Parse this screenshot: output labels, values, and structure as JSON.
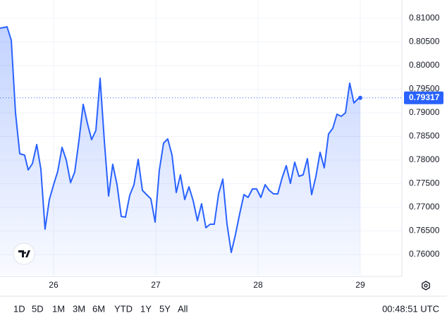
{
  "chart_data": {
    "type": "line",
    "x": [
      25.476,
      25.545,
      25.586,
      25.628,
      25.669,
      25.717,
      25.752,
      25.793,
      25.835,
      25.876,
      25.917,
      25.959,
      26.0,
      26.041,
      26.083,
      26.124,
      26.166,
      26.207,
      26.248,
      26.29,
      26.331,
      26.372,
      26.414,
      26.455,
      26.497,
      26.538,
      26.579,
      26.621,
      26.662,
      26.703,
      26.745,
      26.786,
      26.828,
      26.869,
      26.91,
      26.952,
      26.993,
      27.034,
      27.076,
      27.117,
      27.159,
      27.2,
      27.241,
      27.283,
      27.324,
      27.366,
      27.407,
      27.448,
      27.49,
      27.531,
      27.572,
      27.614,
      27.655,
      27.697,
      27.738,
      27.779,
      27.821,
      27.862,
      27.903,
      27.945,
      27.986,
      28.028,
      28.069,
      28.11,
      28.152,
      28.193,
      28.234,
      28.276,
      28.317,
      28.359,
      28.4,
      28.441,
      28.483,
      28.524,
      28.566,
      28.607,
      28.648,
      28.69,
      28.731,
      28.772,
      28.814,
      28.855,
      28.897,
      28.938,
      28.979,
      29.0
    ],
    "series": [
      {
        "color": "#2962ff",
        "values": [
          0.80791,
          0.80821,
          0.80537,
          0.79,
          0.78134,
          0.78104,
          0.77791,
          0.77925,
          0.78328,
          0.77806,
          0.76537,
          0.77164,
          0.77478,
          0.77761,
          0.78269,
          0.78,
          0.77522,
          0.77746,
          0.78403,
          0.79179,
          0.78776,
          0.78433,
          0.78627,
          0.79731,
          0.78403,
          0.77239,
          0.7791,
          0.77478,
          0.76806,
          0.76791,
          0.77254,
          0.77478,
          0.78015,
          0.77358,
          0.77269,
          0.77179,
          0.76687,
          0.77776,
          0.78358,
          0.78448,
          0.78104,
          0.77313,
          0.77687,
          0.77164,
          0.77433,
          0.77134,
          0.76716,
          0.77075,
          0.76567,
          0.76642,
          0.76642,
          0.77284,
          0.77597,
          0.76642,
          0.76045,
          0.76418,
          0.76866,
          0.77269,
          0.77209,
          0.77388,
          0.77388,
          0.77209,
          0.77478,
          0.77358,
          0.77284,
          0.77284,
          0.77612,
          0.77881,
          0.77507,
          0.77955,
          0.77657,
          0.77687,
          0.7803,
          0.77269,
          0.77657,
          0.78164,
          0.77836,
          0.78552,
          0.78672,
          0.7897,
          0.78925,
          0.79,
          0.79627,
          0.79209,
          0.79299,
          0.79317
        ]
      }
    ],
    "xlim": [
      25.476,
      29.407
    ],
    "xticks": [
      26,
      27,
      28,
      29
    ],
    "ylim": [
      0.75567,
      0.81388
    ],
    "yticks": [
      {
        "value": 0.76,
        "label": "0.76000"
      },
      {
        "value": 0.765,
        "label": "0.76500"
      },
      {
        "value": 0.77,
        "label": "0.77000"
      },
      {
        "value": 0.775,
        "label": "0.77500"
      },
      {
        "value": 0.78,
        "label": "0.78000"
      },
      {
        "value": 0.785,
        "label": "0.78500"
      },
      {
        "value": 0.79,
        "label": "0.79000"
      },
      {
        "value": 0.795,
        "label": "0.79500"
      },
      {
        "value": 0.8,
        "label": "0.80000"
      },
      {
        "value": 0.805,
        "label": "0.80500"
      },
      {
        "value": 0.81,
        "label": "0.81000"
      }
    ],
    "last_price": {
      "value": 0.79317,
      "label": "0.79317"
    },
    "grid": true
  },
  "range_buttons": [
    "1D",
    "5D",
    "1M",
    "3M",
    "6M",
    "YTD",
    "1Y",
    "5Y",
    "All"
  ],
  "clock": "00:48:51 UTC"
}
